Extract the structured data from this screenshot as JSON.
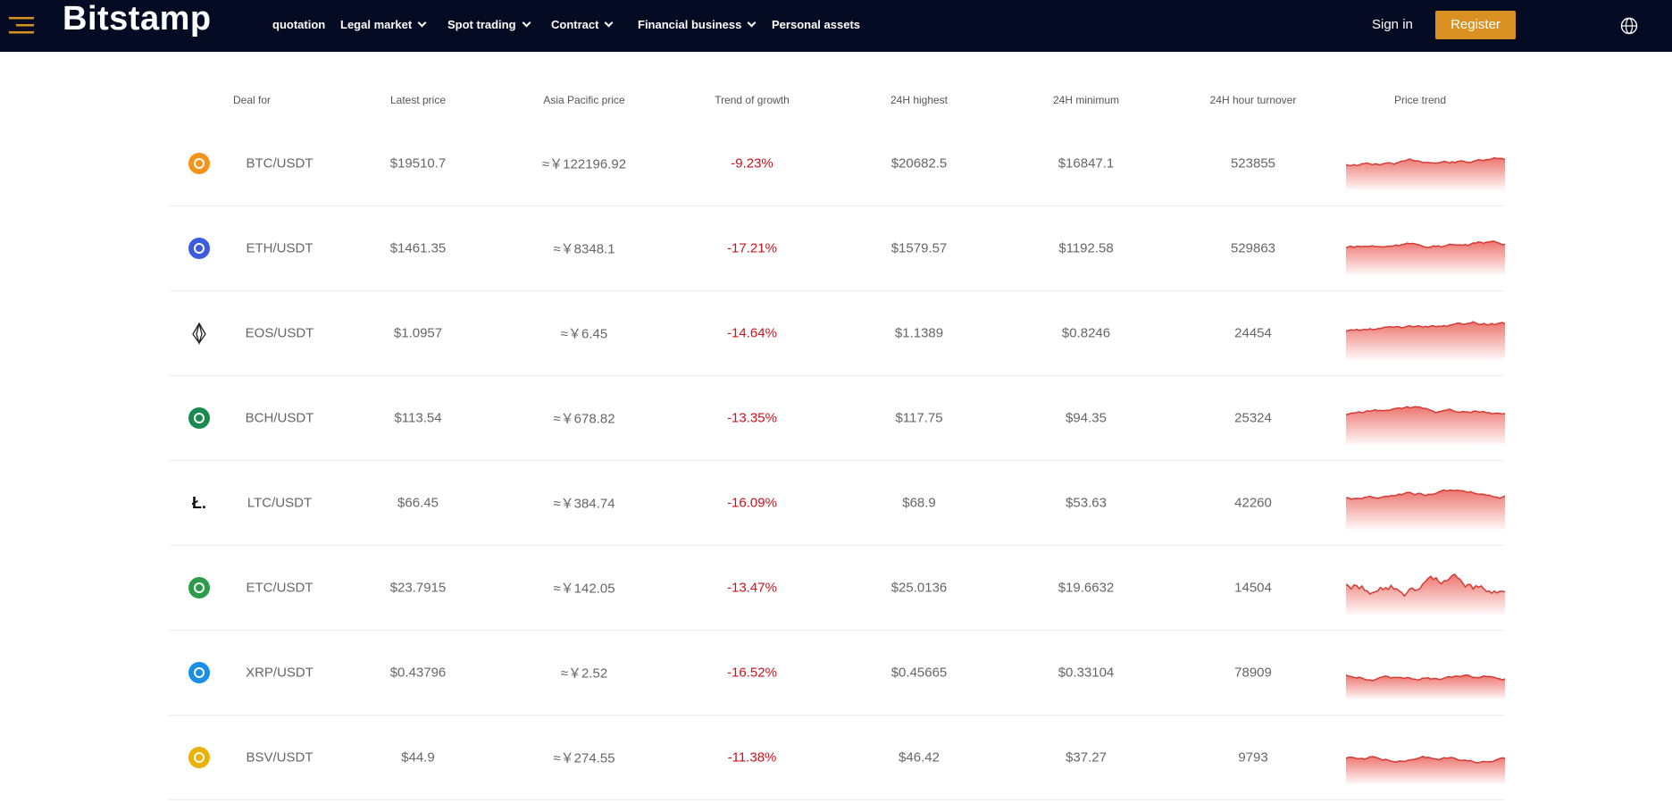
{
  "header": {
    "logo": "Bitstamp",
    "nav": [
      "quotation",
      "Legal market",
      "Spot trading",
      "Contract",
      "Financial business",
      "Personal assets"
    ],
    "sign_in": "Sign in",
    "register": "Register"
  },
  "table": {
    "columns": [
      "Deal for",
      "Latest price",
      "Asia Pacific price",
      "Trend of growth",
      "24H highest",
      "24H minimum",
      "24H hour turnover",
      "Price trend"
    ],
    "rows": [
      [
        "BTC/USDT",
        "$19510.7",
        "≈￥122196.92",
        "-9.23%",
        "$20682.5",
        "$16847.1",
        "523855"
      ],
      [
        "ETH/USDT",
        "$1461.35",
        "≈￥8348.1",
        "-17.21%",
        "$1579.57",
        "$1192.58",
        "529863"
      ],
      [
        "EOS/USDT",
        "$1.0957",
        "≈￥6.45",
        "-14.64%",
        "$1.1389",
        "$0.8246",
        "24454"
      ],
      [
        "BCH/USDT",
        "$113.54",
        "≈￥678.82",
        "-13.35%",
        "$117.75",
        "$94.35",
        "25324"
      ],
      [
        "LTC/USDT",
        "$66.45",
        "≈￥384.74",
        "-16.09%",
        "$68.9",
        "$53.63",
        "42260"
      ],
      [
        "ETC/USDT",
        "$23.7915",
        "≈￥142.05",
        "-13.47%",
        "$25.0136",
        "$19.6632",
        "14504"
      ],
      [
        "XRP/USDT",
        "$0.43796",
        "≈￥2.52",
        "-16.52%",
        "$0.45665",
        "$0.33104",
        "78909"
      ],
      [
        "BSV/USDT",
        "$44.9",
        "≈￥274.55",
        "-11.38%",
        "$46.42",
        "$37.27",
        "9793"
      ]
    ]
  }
}
